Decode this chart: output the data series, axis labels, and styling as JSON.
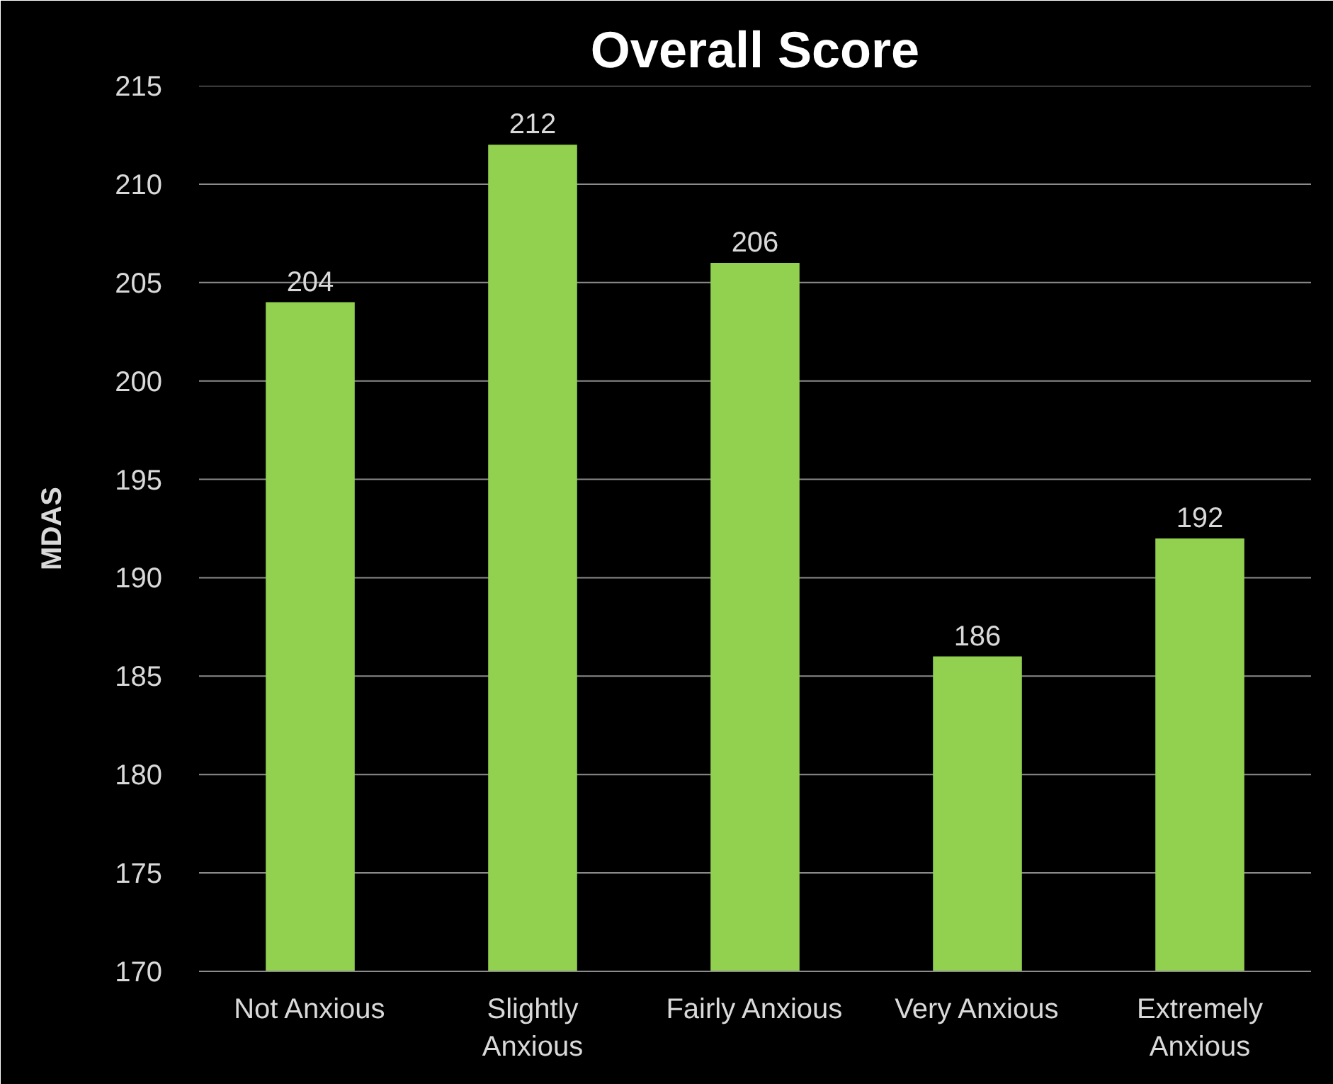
{
  "chart_data": {
    "type": "bar",
    "title": "Overall Score",
    "ylabel": "MDAS",
    "categories": [
      "Not Anxious",
      "Slightly\nAnxious",
      "Fairly Anxious",
      "Very Anxious",
      "Extremely\nAnxious"
    ],
    "values": [
      204,
      212,
      206,
      186,
      192
    ],
    "color": "#92d050",
    "ylim": [
      170,
      215
    ],
    "yticks": [
      170,
      175,
      180,
      185,
      190,
      195,
      200,
      205,
      210,
      215
    ],
    "grid": "y",
    "data_labels": true
  }
}
